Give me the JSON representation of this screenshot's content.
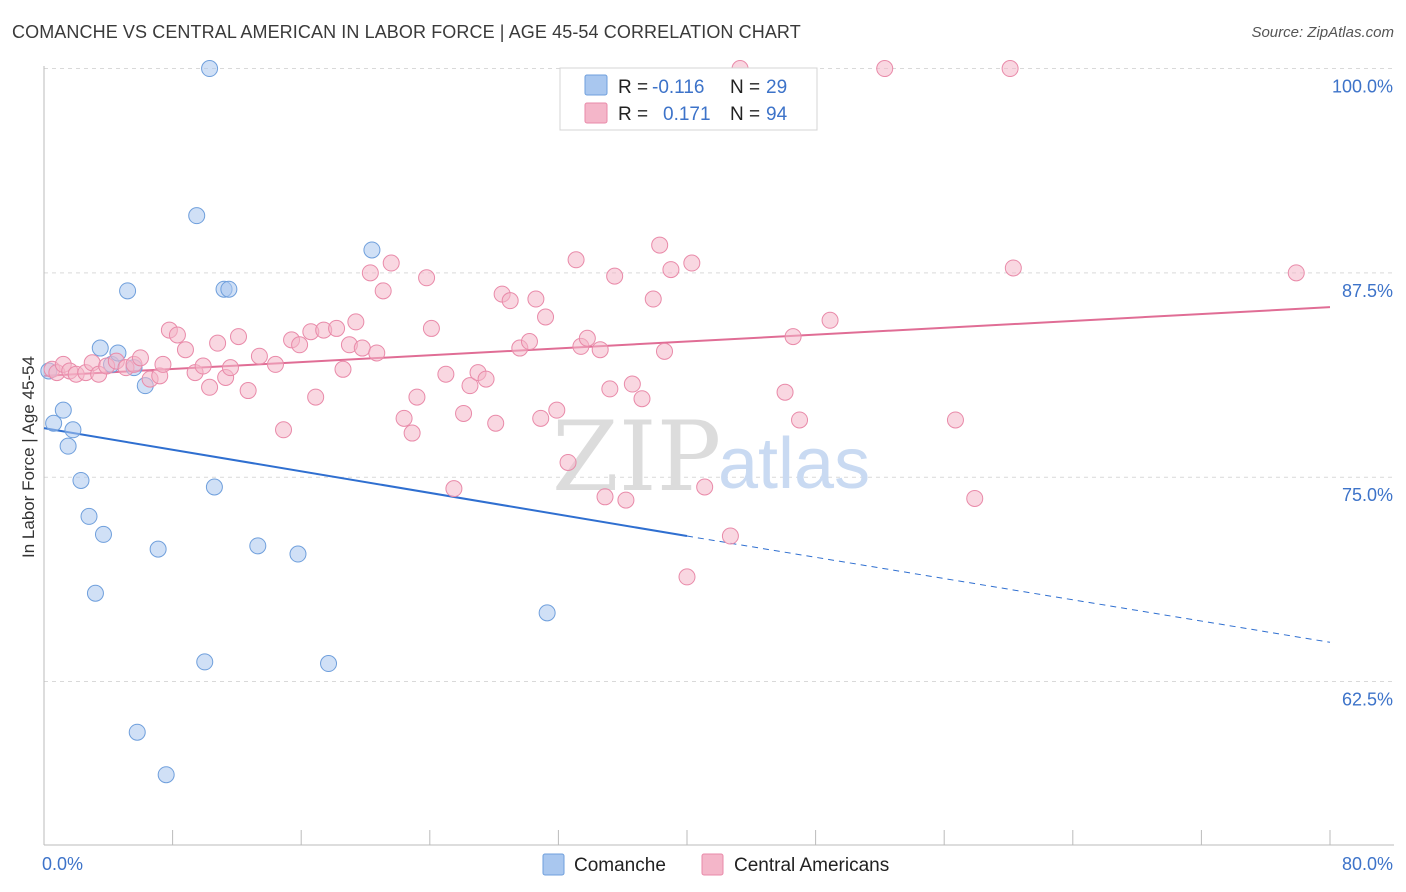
{
  "header": {
    "title": "COMANCHE VS CENTRAL AMERICAN IN LABOR FORCE | AGE 45-54 CORRELATION CHART",
    "source": "Source: ZipAtlas.com"
  },
  "watermark": {
    "zip": "ZIP",
    "atlas": "atlas"
  },
  "legend": {
    "rows": [
      {
        "r_label": "R =",
        "r_value": "-0.116",
        "n_label": "N =",
        "n_value": "29",
        "color": "#a9c7ef"
      },
      {
        "r_label": "R =",
        "r_value": "0.171",
        "n_label": "N =",
        "n_value": "94",
        "color": "#f4b6c9"
      }
    ]
  },
  "bottom_legend": {
    "items": [
      {
        "label": "Comanche",
        "color": "#a9c7ef"
      },
      {
        "label": "Central Americans",
        "color": "#f4b6c9"
      }
    ]
  },
  "chart_data": {
    "type": "scatter",
    "title": "COMANCHE VS CENTRAL AMERICAN IN LABOR FORCE | AGE 45-54 CORRELATION CHART",
    "xlabel": "",
    "ylabel": "In Labor Force | Age 45-54",
    "xlim": [
      0,
      80
    ],
    "ylim": [
      52.5,
      101.5
    ],
    "x_tick_labels": [
      {
        "value": 0,
        "label": "0.0%"
      },
      {
        "value": 80,
        "label": "80.0%"
      }
    ],
    "y_ticks": [
      {
        "value": 100,
        "label": "100.0%"
      },
      {
        "value": 87.5,
        "label": "87.5%"
      },
      {
        "value": 75,
        "label": "75.0%"
      },
      {
        "value": 62.5,
        "label": "62.5%"
      }
    ],
    "grid": "horizontal dashed",
    "legend_position": "top-center",
    "series": [
      {
        "name": "Comanche",
        "color": "#a9c7ef",
        "stroke": "#6f9fdc",
        "line_color": "#2f6fd0",
        "trend": {
          "x0": 0,
          "y0": 78.0,
          "x1": 40,
          "y1": 71.4,
          "x_end": 80,
          "y_end": 64.9
        },
        "points": [
          [
            0.3,
            81.5
          ],
          [
            0.6,
            78.3
          ],
          [
            1.2,
            79.1
          ],
          [
            1.5,
            76.9
          ],
          [
            1.8,
            77.9
          ],
          [
            2.3,
            74.8
          ],
          [
            2.8,
            72.6
          ],
          [
            3.2,
            67.9
          ],
          [
            3.5,
            82.9
          ],
          [
            3.7,
            71.5
          ],
          [
            4.2,
            81.9
          ],
          [
            4.6,
            82.6
          ],
          [
            5.6,
            81.7
          ],
          [
            5.2,
            86.4
          ],
          [
            5.8,
            59.4
          ],
          [
            6.3,
            80.6
          ],
          [
            7.1,
            70.6
          ],
          [
            7.6,
            56.8
          ],
          [
            9.5,
            91.0
          ],
          [
            10.0,
            63.7
          ],
          [
            10.3,
            100.0
          ],
          [
            10.6,
            74.4
          ],
          [
            11.2,
            86.5
          ],
          [
            11.5,
            86.5
          ],
          [
            13.3,
            70.8
          ],
          [
            15.8,
            70.3
          ],
          [
            17.7,
            63.6
          ],
          [
            20.4,
            88.9
          ],
          [
            31.3,
            66.7
          ]
        ]
      },
      {
        "name": "Central Americans",
        "color": "#f4b6c9",
        "stroke": "#e98aa9",
        "line_color": "#e06d95",
        "trend": {
          "x0": 0,
          "y0": 81.2,
          "x1": 80,
          "y1": 85.4
        },
        "points": [
          [
            0.5,
            81.6
          ],
          [
            0.8,
            81.4
          ],
          [
            1.2,
            81.9
          ],
          [
            1.6,
            81.5
          ],
          [
            2.0,
            81.3
          ],
          [
            2.6,
            81.4
          ],
          [
            3.0,
            82.0
          ],
          [
            3.4,
            81.3
          ],
          [
            3.9,
            81.8
          ],
          [
            4.5,
            82.1
          ],
          [
            5.1,
            81.7
          ],
          [
            5.6,
            81.9
          ],
          [
            6.0,
            82.3
          ],
          [
            6.6,
            81.0
          ],
          [
            7.2,
            81.2
          ],
          [
            7.4,
            81.9
          ],
          [
            7.8,
            84.0
          ],
          [
            8.3,
            83.7
          ],
          [
            8.8,
            82.8
          ],
          [
            9.4,
            81.4
          ],
          [
            9.9,
            81.8
          ],
          [
            10.3,
            80.5
          ],
          [
            10.8,
            83.2
          ],
          [
            11.3,
            81.1
          ],
          [
            11.6,
            81.7
          ],
          [
            12.1,
            83.6
          ],
          [
            12.7,
            80.3
          ],
          [
            13.4,
            82.4
          ],
          [
            14.4,
            81.9
          ],
          [
            14.9,
            77.9
          ],
          [
            15.4,
            83.4
          ],
          [
            15.9,
            83.1
          ],
          [
            16.6,
            83.9
          ],
          [
            16.9,
            79.9
          ],
          [
            17.4,
            84.0
          ],
          [
            18.2,
            84.1
          ],
          [
            18.6,
            81.6
          ],
          [
            19.0,
            83.1
          ],
          [
            19.4,
            84.5
          ],
          [
            19.8,
            82.9
          ],
          [
            20.3,
            87.5
          ],
          [
            20.7,
            82.6
          ],
          [
            21.1,
            86.4
          ],
          [
            21.6,
            88.1
          ],
          [
            22.4,
            78.6
          ],
          [
            22.9,
            77.7
          ],
          [
            23.2,
            79.9
          ],
          [
            23.8,
            87.2
          ],
          [
            24.1,
            84.1
          ],
          [
            25.0,
            81.3
          ],
          [
            25.5,
            74.3
          ],
          [
            26.1,
            78.9
          ],
          [
            26.5,
            80.6
          ],
          [
            27.0,
            81.4
          ],
          [
            27.5,
            81.0
          ],
          [
            28.1,
            78.3
          ],
          [
            28.5,
            86.2
          ],
          [
            29.0,
            85.8
          ],
          [
            29.6,
            82.9
          ],
          [
            30.2,
            83.3
          ],
          [
            30.6,
            85.9
          ],
          [
            30.9,
            78.6
          ],
          [
            31.2,
            84.8
          ],
          [
            31.9,
            79.1
          ],
          [
            32.6,
            75.9
          ],
          [
            33.1,
            88.3
          ],
          [
            33.4,
            83.0
          ],
          [
            33.8,
            83.5
          ],
          [
            34.6,
            82.8
          ],
          [
            34.9,
            73.8
          ],
          [
            35.2,
            80.4
          ],
          [
            35.5,
            87.3
          ],
          [
            36.2,
            73.6
          ],
          [
            36.6,
            80.7
          ],
          [
            37.2,
            79.8
          ],
          [
            37.9,
            85.9
          ],
          [
            38.3,
            89.2
          ],
          [
            38.6,
            82.7
          ],
          [
            39.0,
            87.7
          ],
          [
            40.0,
            68.9
          ],
          [
            40.3,
            88.1
          ],
          [
            41.1,
            74.4
          ],
          [
            42.7,
            71.4
          ],
          [
            43.3,
            100.0
          ],
          [
            46.1,
            80.2
          ],
          [
            46.6,
            83.6
          ],
          [
            47.0,
            78.5
          ],
          [
            48.9,
            84.6
          ],
          [
            52.3,
            100.0
          ],
          [
            56.7,
            78.5
          ],
          [
            57.9,
            73.7
          ],
          [
            60.1,
            100.0
          ],
          [
            60.3,
            87.8
          ],
          [
            77.9,
            87.5
          ]
        ]
      }
    ]
  }
}
